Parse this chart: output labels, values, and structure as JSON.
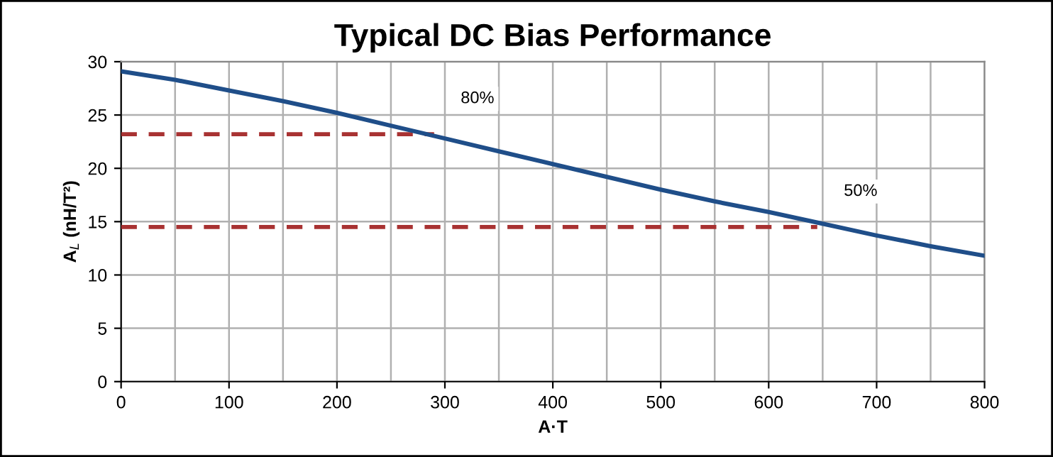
{
  "chart_data": {
    "type": "line",
    "title": "Typical DC Bias Performance",
    "xlabel": "A·T",
    "ylabel": "A$_{L}$ (nH/T²)",
    "series": [
      {
        "color": "#1f4e89",
        "x": [
          0,
          50,
          100,
          150,
          200,
          250,
          300,
          350,
          400,
          450,
          500,
          550,
          600,
          650,
          700,
          750,
          800
        ],
        "values": [
          29.1,
          28.3,
          27.3,
          26.3,
          25.2,
          24.0,
          22.8,
          21.6,
          20.4,
          19.2,
          18.0,
          16.9,
          15.9,
          14.8,
          13.7,
          12.7,
          11.8
        ],
        "line_style": "solid"
      },
      {
        "color": "#a83232",
        "x": [
          0,
          290
        ],
        "values": [
          23.2,
          23.2
        ],
        "line_style": "dashed"
      },
      {
        "color": "#a83232",
        "x": [
          0,
          645
        ],
        "values": [
          14.5,
          14.5
        ],
        "line_style": "dashed"
      }
    ],
    "annotations": [
      {
        "text": "80%",
        "x": 290,
        "y": 23.2
      },
      {
        "text": "50%",
        "x": 645,
        "y": 14.5
      }
    ],
    "xlim": [
      0,
      800
    ],
    "ylim": [
      0,
      30
    ],
    "xticks": [
      0,
      {
        "value": 50,
        "label": null
      },
      100,
      {
        "value": 150,
        "label": null
      },
      200,
      {
        "value": 250,
        "label": null
      },
      300,
      {
        "value": 350,
        "label": null
      },
      400,
      {
        "value": 450,
        "label": null
      },
      500,
      {
        "value": 550,
        "label": null
      },
      600,
      {
        "value": 650,
        "label": null
      },
      700,
      {
        "value": 750,
        "label": null
      },
      800
    ],
    "yticks": [
      0,
      5,
      10,
      15,
      20,
      25,
      30
    ],
    "grid": true,
    "marker": "none",
    "legend": false
  }
}
